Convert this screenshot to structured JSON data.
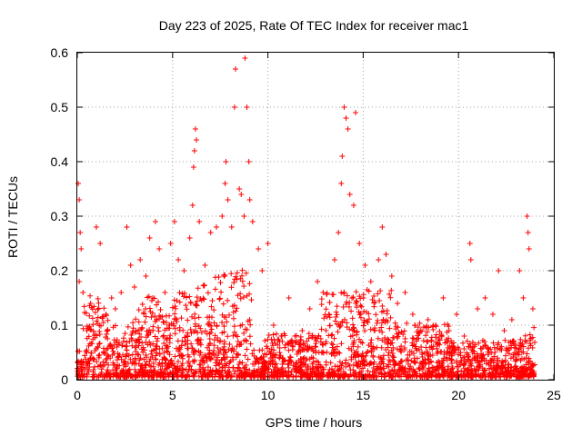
{
  "chart_data": {
    "type": "scatter",
    "title": "Day 223 of 2025, Rate Of TEC Index for receiver mac1",
    "xlabel": "GPS time / hours",
    "ylabel": "ROTI / TECUs",
    "xlim": [
      0,
      25
    ],
    "ylim": [
      0,
      0.6
    ],
    "x_ticks": [
      0,
      5,
      10,
      15,
      20,
      25
    ],
    "x_tick_labels": [
      "0",
      "5",
      "10",
      "15",
      "20",
      "25"
    ],
    "y_ticks": [
      0,
      0.1,
      0.2,
      0.3,
      0.4,
      0.5,
      0.6
    ],
    "y_tick_labels": [
      "0",
      "0.1",
      "0.2",
      "0.3",
      "0.4",
      "0.5",
      "0.6"
    ],
    "grid": true,
    "marker": "+",
    "color": "#ff0000",
    "series": [
      {
        "points": [
          [
            0.05,
            0.36
          ],
          [
            0.1,
            0.33
          ],
          [
            0.15,
            0.27
          ],
          [
            0.2,
            0.24
          ],
          [
            0.1,
            0.18
          ],
          [
            0.3,
            0.16
          ],
          [
            0.5,
            0.09
          ],
          [
            0.7,
            0.14
          ],
          [
            1.0,
            0.28
          ],
          [
            1.2,
            0.25
          ],
          [
            1.5,
            0.12
          ],
          [
            1.8,
            0.15
          ],
          [
            2.0,
            0.13
          ],
          [
            2.3,
            0.16
          ],
          [
            2.6,
            0.28
          ],
          [
            2.8,
            0.21
          ],
          [
            3.0,
            0.17
          ],
          [
            3.3,
            0.22
          ],
          [
            3.6,
            0.19
          ],
          [
            3.8,
            0.26
          ],
          [
            4.1,
            0.29
          ],
          [
            4.3,
            0.24
          ],
          [
            4.6,
            0.16
          ],
          [
            4.9,
            0.25
          ],
          [
            5.1,
            0.29
          ],
          [
            5.3,
            0.22
          ],
          [
            5.6,
            0.2
          ],
          [
            5.9,
            0.26
          ],
          [
            6.05,
            0.32
          ],
          [
            6.1,
            0.39
          ],
          [
            6.15,
            0.42
          ],
          [
            6.2,
            0.46
          ],
          [
            6.25,
            0.44
          ],
          [
            6.4,
            0.29
          ],
          [
            6.7,
            0.21
          ],
          [
            7.0,
            0.27
          ],
          [
            7.3,
            0.28
          ],
          [
            7.6,
            0.3
          ],
          [
            7.75,
            0.36
          ],
          [
            7.8,
            0.4
          ],
          [
            7.9,
            0.33
          ],
          [
            8.1,
            0.28
          ],
          [
            8.25,
            0.5
          ],
          [
            8.3,
            0.57
          ],
          [
            8.5,
            0.35
          ],
          [
            8.6,
            0.34
          ],
          [
            8.75,
            0.3
          ],
          [
            8.8,
            0.59
          ],
          [
            8.9,
            0.5
          ],
          [
            9.0,
            0.4
          ],
          [
            9.05,
            0.33
          ],
          [
            9.2,
            0.29
          ],
          [
            9.5,
            0.24
          ],
          [
            9.7,
            0.2
          ],
          [
            10.0,
            0.25
          ],
          [
            10.3,
            0.1
          ],
          [
            10.7,
            0.08
          ],
          [
            11.1,
            0.15
          ],
          [
            11.5,
            0.07
          ],
          [
            11.8,
            0.09
          ],
          [
            12.2,
            0.13
          ],
          [
            12.6,
            0.18
          ],
          [
            12.9,
            0.16
          ],
          [
            13.2,
            0.12
          ],
          [
            13.5,
            0.22
          ],
          [
            13.7,
            0.27
          ],
          [
            13.85,
            0.36
          ],
          [
            13.9,
            0.41
          ],
          [
            14.0,
            0.5
          ],
          [
            14.1,
            0.48
          ],
          [
            14.2,
            0.46
          ],
          [
            14.3,
            0.34
          ],
          [
            14.5,
            0.32
          ],
          [
            14.6,
            0.49
          ],
          [
            14.8,
            0.25
          ],
          [
            15.1,
            0.21
          ],
          [
            15.4,
            0.18
          ],
          [
            15.8,
            0.22
          ],
          [
            16.0,
            0.28
          ],
          [
            16.2,
            0.23
          ],
          [
            16.5,
            0.19
          ],
          [
            16.8,
            0.14
          ],
          [
            17.2,
            0.16
          ],
          [
            17.6,
            0.12
          ],
          [
            18.0,
            0.09
          ],
          [
            18.4,
            0.11
          ],
          [
            18.8,
            0.1
          ],
          [
            19.2,
            0.15
          ],
          [
            19.5,
            0.09
          ],
          [
            19.9,
            0.12
          ],
          [
            20.3,
            0.08
          ],
          [
            20.6,
            0.25
          ],
          [
            20.65,
            0.22
          ],
          [
            21.0,
            0.13
          ],
          [
            21.4,
            0.15
          ],
          [
            21.8,
            0.12
          ],
          [
            22.1,
            0.2
          ],
          [
            22.4,
            0.09
          ],
          [
            22.8,
            0.11
          ],
          [
            23.2,
            0.2
          ],
          [
            23.4,
            0.15
          ],
          [
            23.6,
            0.3
          ],
          [
            23.65,
            0.27
          ],
          [
            23.7,
            0.24
          ],
          [
            23.9,
            0.13
          ]
        ]
      }
    ]
  }
}
